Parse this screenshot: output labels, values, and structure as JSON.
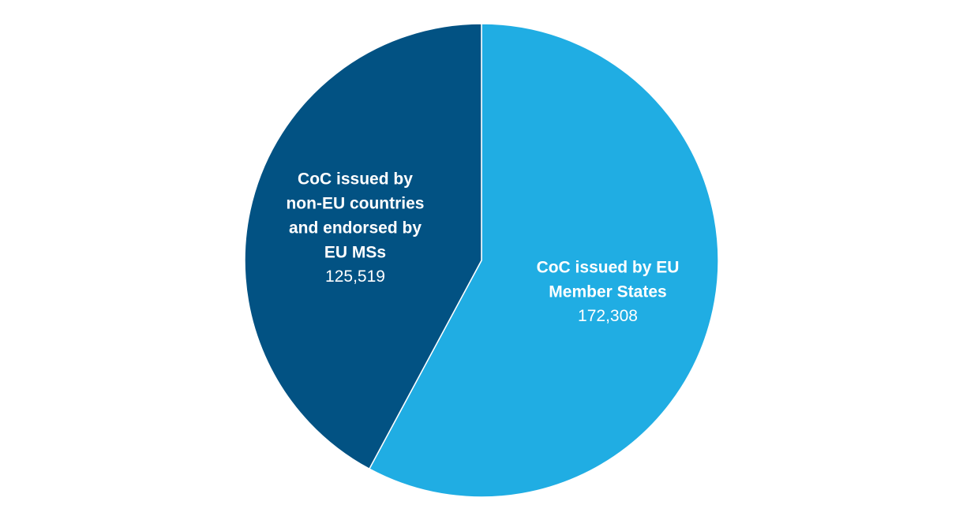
{
  "chart_data": {
    "type": "pie",
    "categories": [
      "CoC issued by EU Member States",
      "CoC issued by non-EU countries and endorsed by EU MSs"
    ],
    "values": [
      172308,
      125519
    ],
    "value_labels": [
      "172,308",
      "125,519"
    ],
    "colors": [
      "#20ade3",
      "#025283"
    ]
  }
}
